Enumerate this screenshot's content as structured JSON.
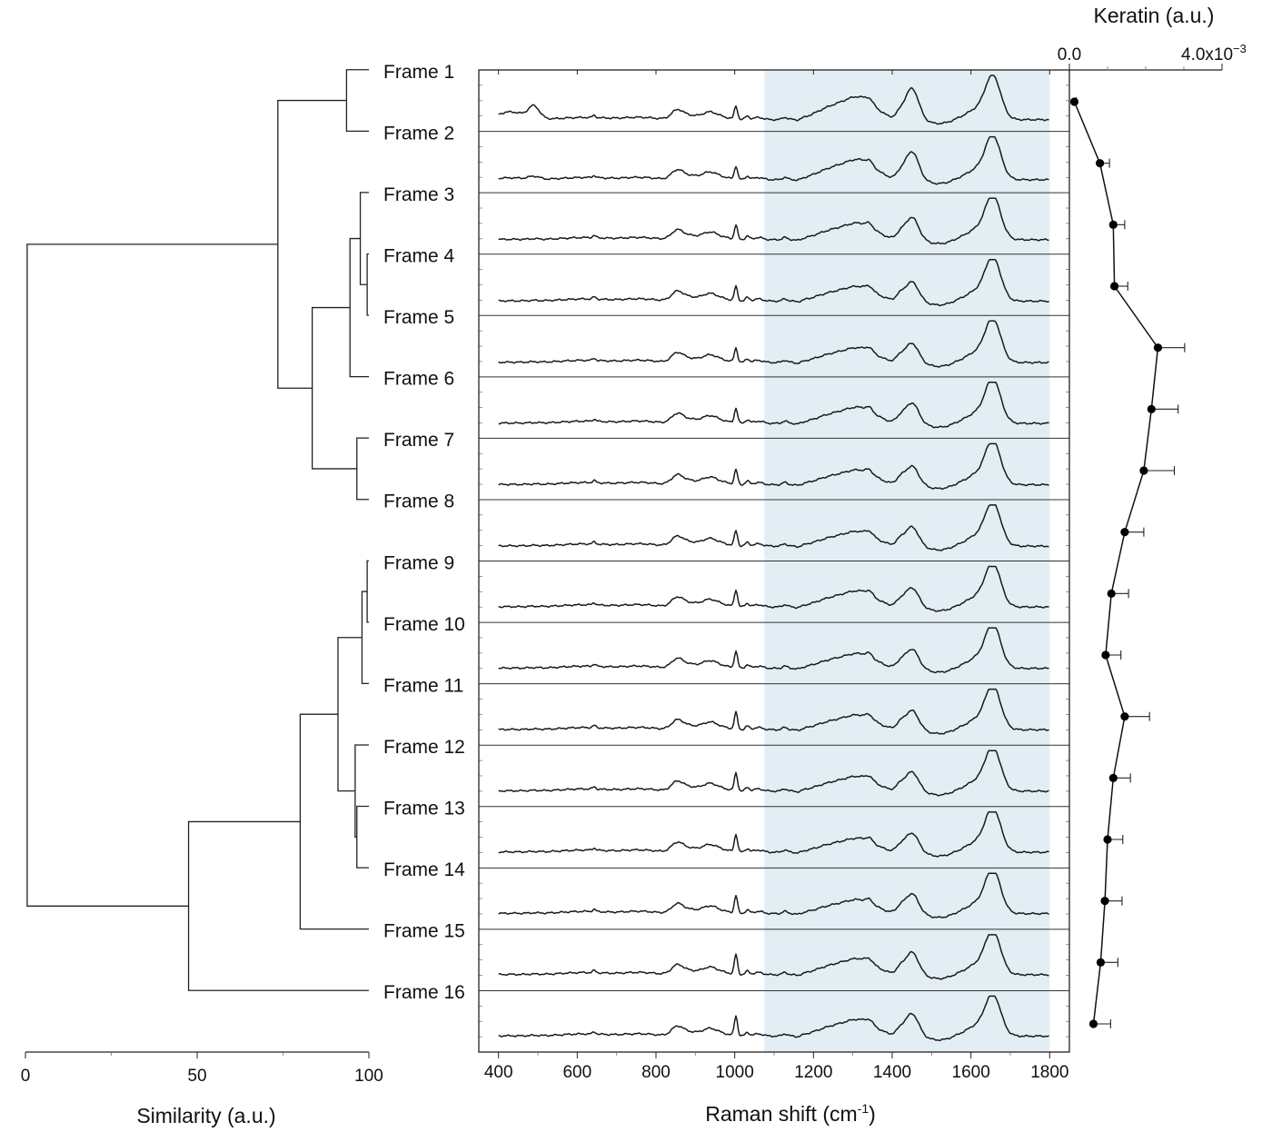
{
  "chart_data": [
    {
      "type": "dendrogram",
      "xlabel": "Similarity (a.u.)",
      "xticks": [
        0,
        50,
        100
      ],
      "xlim": [
        0,
        100
      ],
      "leaves": [
        "Frame 1",
        "Frame 2",
        "Frame 3",
        "Frame 4",
        "Frame 5",
        "Frame 6",
        "Frame 7",
        "Frame 8",
        "Frame 9",
        "Frame 10",
        "Frame 11",
        "Frame 12",
        "Frame 13",
        "Frame 14",
        "Frame 15",
        "Frame 16"
      ],
      "merges": [
        {
          "a": "Frame 4",
          "b": "Frame 5",
          "similarity": 99.5
        },
        {
          "a": "Frame 3",
          "b": "Frame 4+5",
          "similarity": 97.5
        },
        {
          "a": "Frame 3-5",
          "b": "Frame 6",
          "similarity": 94.5
        },
        {
          "a": "Frame 7",
          "b": "Frame 8",
          "similarity": 96.5
        },
        {
          "a": "Frame 3-6",
          "b": "Frame 7-8",
          "similarity": 83.5
        },
        {
          "a": "Frame 1",
          "b": "Frame 2",
          "similarity": 93.5
        },
        {
          "a": "Frame 1-2",
          "b": "Frame 3-8",
          "similarity": 73.5
        },
        {
          "a": "Frame 9",
          "b": "Frame 10",
          "similarity": 99.5
        },
        {
          "a": "Frame 9-10",
          "b": "Frame 11",
          "similarity": 98.0
        },
        {
          "a": "Frame 13",
          "b": "Frame 14",
          "similarity": 96.5
        },
        {
          "a": "Frame 12",
          "b": "Frame 13-14",
          "similarity": 96.0
        },
        {
          "a": "Frame 9-11",
          "b": "Frame 12-14",
          "similarity": 91.0
        },
        {
          "a": "Frame 9-14",
          "b": "Frame 15",
          "similarity": 80.0
        },
        {
          "a": "Frame 9-15",
          "b": "Frame 16",
          "similarity": 47.5
        },
        {
          "a": "Frame 1-8",
          "b": "Frame 9-16",
          "similarity": 0.5
        }
      ]
    },
    {
      "type": "line",
      "xlabel_main": "Raman shift (cm",
      "xlabel_sup": "-1",
      "xlabel_close": ")",
      "xticks": [
        400,
        600,
        800,
        1000,
        1200,
        1400,
        1600,
        1800
      ],
      "xlim": [
        350,
        1850
      ],
      "shaded_region": [
        1075,
        1800
      ],
      "shade_color": "#e3edf4",
      "series": [
        {
          "name": "Frame 1",
          "peaks_490": 0.5,
          "bg": 0.0,
          "amide3": 0.85,
          "ch2": 1.0,
          "amide1": 1.0,
          "phe": 0.3
        },
        {
          "name": "Frame 2",
          "peaks_490": 0.12,
          "bg": 0.05,
          "amide3": 0.75,
          "ch2": 0.9,
          "amide1": 1.0,
          "phe": 0.3
        },
        {
          "name": "Frame 3",
          "peaks_490": 0.03,
          "bg": 0.1,
          "amide3": 0.62,
          "ch2": 0.72,
          "amide1": 1.0,
          "phe": 0.32
        },
        {
          "name": "Frame 4",
          "peaks_490": 0.02,
          "bg": 0.1,
          "amide3": 0.55,
          "ch2": 0.62,
          "amide1": 1.0,
          "phe": 0.32
        },
        {
          "name": "Frame 5",
          "peaks_490": 0.02,
          "bg": 0.1,
          "amide3": 0.55,
          "ch2": 0.62,
          "amide1": 1.0,
          "phe": 0.32
        },
        {
          "name": "Frame 6",
          "peaks_490": 0.02,
          "bg": 0.12,
          "amide3": 0.6,
          "ch2": 0.66,
          "amide1": 1.0,
          "phe": 0.33
        },
        {
          "name": "Frame 7",
          "peaks_490": 0.02,
          "bg": 0.12,
          "amide3": 0.55,
          "ch2": 0.6,
          "amide1": 1.0,
          "phe": 0.33
        },
        {
          "name": "Frame 8",
          "peaks_490": 0.02,
          "bg": 0.12,
          "amide3": 0.55,
          "ch2": 0.62,
          "amide1": 1.0,
          "phe": 0.34
        },
        {
          "name": "Frame 9",
          "peaks_490": 0.02,
          "bg": 0.14,
          "amide3": 0.6,
          "ch2": 0.62,
          "amide1": 1.0,
          "phe": 0.38
        },
        {
          "name": "Frame 10",
          "peaks_490": 0.02,
          "bg": 0.14,
          "amide3": 0.55,
          "ch2": 0.62,
          "amide1": 1.0,
          "phe": 0.38
        },
        {
          "name": "Frame 11",
          "peaks_490": 0.02,
          "bg": 0.14,
          "amide3": 0.55,
          "ch2": 0.62,
          "amide1": 1.0,
          "phe": 0.38
        },
        {
          "name": "Frame 12",
          "peaks_490": 0.02,
          "bg": 0.14,
          "amide3": 0.55,
          "ch2": 0.62,
          "amide1": 1.0,
          "phe": 0.4
        },
        {
          "name": "Frame 13",
          "peaks_490": 0.02,
          "bg": 0.15,
          "amide3": 0.52,
          "ch2": 0.62,
          "amide1": 1.0,
          "phe": 0.4
        },
        {
          "name": "Frame 14",
          "peaks_490": 0.02,
          "bg": 0.15,
          "amide3": 0.52,
          "ch2": 0.64,
          "amide1": 1.0,
          "phe": 0.4
        },
        {
          "name": "Frame 15",
          "peaks_490": 0.02,
          "bg": 0.16,
          "amide3": 0.6,
          "ch2": 0.72,
          "amide1": 1.0,
          "phe": 0.45
        },
        {
          "name": "Frame 16",
          "peaks_490": 0.02,
          "bg": 0.16,
          "amide3": 0.62,
          "ch2": 0.72,
          "amide1": 0.95,
          "phe": 0.45
        }
      ]
    },
    {
      "type": "scatter",
      "title": "Keratin (a.u.)",
      "xtick_left": "0.0",
      "xtick_right_base": "4.0x10",
      "xtick_right_exp": "−3",
      "xlim": [
        0,
        0.004
      ],
      "y_categories": [
        "Frame 1",
        "Frame 2",
        "Frame 3",
        "Frame 4",
        "Frame 5",
        "Frame 6",
        "Frame 7",
        "Frame 8",
        "Frame 9",
        "Frame 10",
        "Frame 11",
        "Frame 12",
        "Frame 13",
        "Frame 14",
        "Frame 15",
        "Frame 16"
      ],
      "values": [
        0.00013,
        0.0008,
        0.00115,
        0.00118,
        0.00232,
        0.00215,
        0.00195,
        0.00145,
        0.0011,
        0.00095,
        0.00145,
        0.00115,
        0.001,
        0.00093,
        0.00082,
        0.00063
      ],
      "errors": [
        5e-05,
        0.00025,
        0.0003,
        0.00035,
        0.0007,
        0.0007,
        0.0008,
        0.0005,
        0.00045,
        0.0004,
        0.00065,
        0.00045,
        0.0004,
        0.00045,
        0.00045,
        0.00045
      ]
    }
  ]
}
